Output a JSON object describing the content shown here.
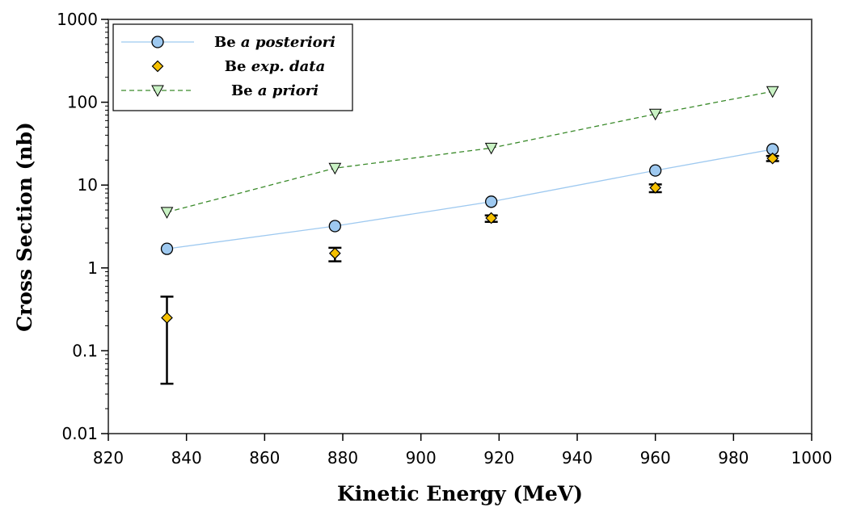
{
  "chart_data": {
    "type": "scatter",
    "title": "",
    "xlabel": "Kinetic Energy (MeV)",
    "ylabel": "Cross Section (nb)",
    "xlim": [
      820,
      1000
    ],
    "ylim": [
      0.01,
      1000
    ],
    "yscale": "log",
    "x_ticks": [
      820,
      840,
      860,
      880,
      900,
      920,
      940,
      960,
      980,
      1000
    ],
    "x_tick_labels": [
      "820",
      "840",
      "860",
      "880",
      "900",
      "920",
      "940",
      "960",
      "980",
      "1000"
    ],
    "y_ticks": [
      0.01,
      0.1,
      1,
      10,
      100,
      1000
    ],
    "y_tick_labels": [
      "0.01",
      "0.1",
      "1",
      "10",
      "100",
      "1000"
    ],
    "grid": false,
    "legend_position": "top-left",
    "series": [
      {
        "name": "Be a posteriori",
        "label_plain": "Be ",
        "label_italic": "a posteriori",
        "marker": "circle",
        "line": "solid",
        "color": "#9ec9f0",
        "line_color": "#9ec9f0",
        "x": [
          835,
          878,
          918,
          960,
          990
        ],
        "y": [
          1.7,
          3.2,
          6.3,
          15,
          27
        ]
      },
      {
        "name": "Be exp. data",
        "label_plain": "Be ",
        "label_italic": "exp. data",
        "marker": "diamond",
        "line": "none",
        "color": "#f5c000",
        "x": [
          835,
          878,
          918,
          960,
          990
        ],
        "y": [
          0.25,
          1.5,
          4.0,
          9.3,
          21
        ],
        "y_err_low": [
          0.04,
          1.2,
          3.6,
          8.2,
          19.5
        ],
        "y_err_high": [
          0.45,
          1.75,
          4.3,
          10.2,
          22.5
        ]
      },
      {
        "name": "Be a priori",
        "label_plain": "Be ",
        "label_italic": "a priori",
        "marker": "triangle-down",
        "line": "dashed",
        "color": "#c9f2c4",
        "line_color": "#3a8a2a",
        "x": [
          835,
          878,
          918,
          960,
          990
        ],
        "y": [
          4.7,
          16,
          28,
          72,
          135
        ]
      }
    ]
  }
}
